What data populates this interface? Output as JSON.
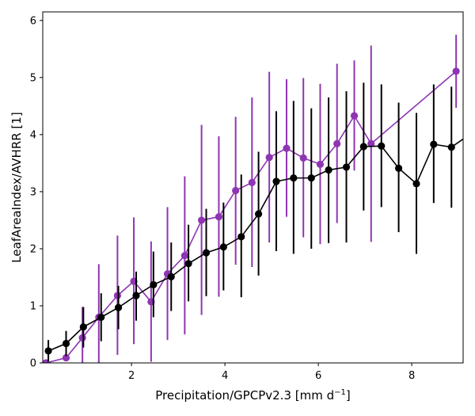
{
  "chart_data": {
    "type": "line",
    "title": "",
    "xlabel": "Precipitation/GPCPv2.3 [mm d",
    "xlabel_sup": "−1",
    "xlabel_suffix": "]",
    "ylabel": "LeafAreaIndex/AVHRR [1]",
    "xlim": [
      0.1,
      9.1
    ],
    "ylim": [
      0,
      6.15
    ],
    "xticks": [
      2,
      4,
      6,
      8
    ],
    "xtick_labels": [
      "2",
      "4",
      "6",
      "8"
    ],
    "yticks": [
      0,
      1,
      2,
      3,
      4,
      5,
      6
    ],
    "ytick_labels": [
      "0",
      "1",
      "2",
      "3",
      "4",
      "5",
      "6"
    ],
    "grid": false,
    "legend": "none",
    "series": [
      {
        "color": "#8e35b2",
        "x": [
          0.17,
          0.6,
          0.95,
          1.3,
          1.7,
          2.05,
          2.42,
          2.77,
          3.14,
          3.5,
          3.87,
          4.23,
          4.58,
          4.95,
          5.32,
          5.68,
          6.04,
          6.4,
          6.77,
          7.13,
          8.95
        ],
        "y": [
          0.0,
          0.09,
          0.44,
          0.8,
          1.18,
          1.43,
          1.07,
          1.56,
          1.88,
          2.5,
          2.56,
          3.02,
          3.16,
          3.6,
          3.76,
          3.59,
          3.48,
          3.84,
          4.33,
          3.84,
          5.11
        ],
        "err_low": [
          0.0,
          0.09,
          0.44,
          0.8,
          1.18,
          1.43,
          1.07,
          1.56,
          1.88,
          2.5,
          2.56,
          3.02,
          3.16,
          3.6,
          3.76,
          3.59,
          3.48,
          3.84,
          4.33,
          3.84,
          5.11
        ],
        "err_high": [
          0.0,
          0.0,
          0.98,
          1.73,
          2.23,
          2.55,
          2.13,
          2.73,
          3.27,
          4.17,
          3.97,
          4.31,
          4.65,
          5.1,
          4.97,
          4.99,
          4.89,
          5.24,
          5.3,
          5.56,
          5.75
        ],
        "err_bottom": [
          0.0,
          0.0,
          0.0,
          0.0,
          0.14,
          0.33,
          0.02,
          0.4,
          0.5,
          0.84,
          1.16,
          1.72,
          1.68,
          2.11,
          2.56,
          2.2,
          2.08,
          2.45,
          3.37,
          2.12,
          4.47
        ]
      },
      {
        "color": "#000000",
        "x": [
          0.22,
          0.6,
          0.97,
          1.35,
          1.72,
          2.1,
          2.47,
          2.85,
          3.22,
          3.6,
          3.97,
          4.35,
          4.72,
          5.1,
          5.47,
          5.85,
          6.22,
          6.6,
          6.97,
          7.35,
          7.72,
          8.1,
          8.47,
          8.85,
          9.22
        ],
        "y": [
          0.21,
          0.34,
          0.63,
          0.8,
          0.97,
          1.18,
          1.37,
          1.51,
          1.74,
          1.93,
          2.03,
          2.21,
          2.61,
          3.18,
          3.24,
          3.24,
          3.38,
          3.43,
          3.79,
          3.8,
          3.41,
          3.14,
          3.83,
          3.78,
          3.99
        ],
        "err_high": [
          0.4,
          0.56,
          0.98,
          1.22,
          1.35,
          1.6,
          1.95,
          2.11,
          2.42,
          2.7,
          2.81,
          3.3,
          3.7,
          4.41,
          4.59,
          4.46,
          4.65,
          4.76,
          4.91,
          4.88,
          4.56,
          4.38,
          4.88,
          4.84,
          4.7
        ],
        "err_bottom": [
          0.02,
          0.12,
          0.27,
          0.38,
          0.59,
          0.74,
          0.8,
          0.91,
          1.08,
          1.17,
          1.27,
          1.15,
          1.53,
          1.96,
          1.91,
          2.0,
          2.1,
          2.11,
          2.67,
          2.73,
          2.29,
          1.91,
          2.8,
          2.72,
          3.29
        ]
      }
    ]
  }
}
